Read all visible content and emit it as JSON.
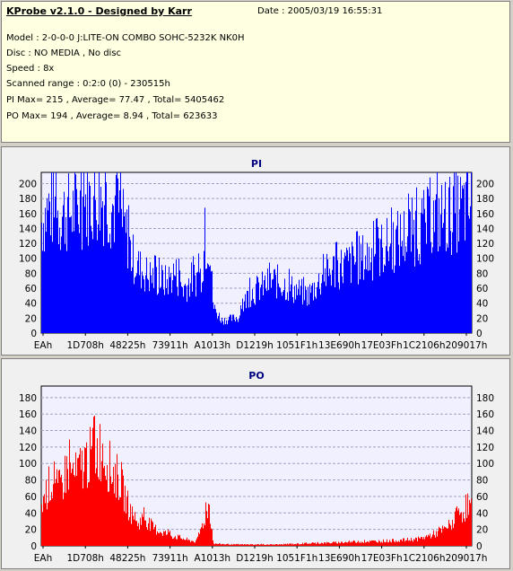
{
  "header": {
    "app_title": "KProbe v2.1.0 - Designed by Karr",
    "date": "Date : 2005/03/19 16:55:31",
    "lines": [
      "Model : 2-0-0-0 J:LITE-ON COMBO SOHC-5232K NK0H",
      "Disc : NO MEDIA , No disc",
      "Speed : 8x",
      "Scanned range : 0:2:0 (0) - 230515h",
      "PI Max= 215 , Average= 77.47 , Total= 5405462",
      "PO Max= 194 , Average= 8.94 , Total= 623633"
    ]
  },
  "chart_data": [
    {
      "type": "area",
      "title": "PI",
      "color": "#0000ff",
      "ylim": [
        0,
        215
      ],
      "yticks": [
        0,
        20,
        40,
        60,
        80,
        100,
        120,
        140,
        160,
        180,
        200
      ],
      "xticks": [
        "EAh",
        "1D708h",
        "48225h",
        "73911h",
        "A1013h",
        "D1219h",
        "1051F1h",
        "13E690h",
        "17E03Fh",
        "1C2106h",
        "209017h"
      ],
      "grid": true,
      "max": 215,
      "average": 77.47,
      "total": 5405462,
      "profile": [
        [
          0,
          175
        ],
        [
          0.02,
          200
        ],
        [
          0.04,
          185
        ],
        [
          0.06,
          190
        ],
        [
          0.08,
          192
        ],
        [
          0.1,
          205
        ],
        [
          0.12,
          210
        ],
        [
          0.14,
          212
        ],
        [
          0.16,
          200
        ],
        [
          0.18,
          190
        ],
        [
          0.2,
          150
        ],
        [
          0.21,
          120
        ],
        [
          0.23,
          100
        ],
        [
          0.25,
          90
        ],
        [
          0.27,
          85
        ],
        [
          0.29,
          80
        ],
        [
          0.31,
          95
        ],
        [
          0.33,
          70
        ],
        [
          0.35,
          85
        ],
        [
          0.37,
          90
        ],
        [
          0.38,
          140
        ],
        [
          0.39,
          150
        ],
        [
          0.4,
          40
        ],
        [
          0.41,
          30
        ],
        [
          0.42,
          20
        ],
        [
          0.44,
          22
        ],
        [
          0.46,
          25
        ],
        [
          0.48,
          60
        ],
        [
          0.5,
          68
        ],
        [
          0.52,
          75
        ],
        [
          0.54,
          82
        ],
        [
          0.56,
          78
        ],
        [
          0.58,
          70
        ],
        [
          0.6,
          65
        ],
        [
          0.62,
          60
        ],
        [
          0.64,
          75
        ],
        [
          0.66,
          92
        ],
        [
          0.68,
          100
        ],
        [
          0.7,
          105
        ],
        [
          0.72,
          110
        ],
        [
          0.74,
          115
        ],
        [
          0.76,
          120
        ],
        [
          0.78,
          128
        ],
        [
          0.8,
          135
        ],
        [
          0.82,
          142
        ],
        [
          0.84,
          150
        ],
        [
          0.86,
          158
        ],
        [
          0.88,
          165
        ],
        [
          0.9,
          172
        ],
        [
          0.92,
          180
        ],
        [
          0.94,
          185
        ],
        [
          0.96,
          190
        ],
        [
          0.98,
          195
        ],
        [
          1.0,
          200
        ]
      ]
    },
    {
      "type": "area",
      "title": "PO",
      "color": "#ff0000",
      "ylim": [
        0,
        194
      ],
      "yticks": [
        0,
        20,
        40,
        60,
        80,
        100,
        120,
        140,
        160,
        180
      ],
      "xticks": [
        "EAh",
        "1D708h",
        "48225h",
        "73911h",
        "A1013h",
        "D1219h",
        "1051F1h",
        "13E690h",
        "17E03Fh",
        "1C2106h",
        "209017h"
      ],
      "grid": true,
      "max": 194,
      "average": 8.94,
      "total": 623633,
      "profile": [
        [
          0,
          60
        ],
        [
          0.02,
          90
        ],
        [
          0.04,
          80
        ],
        [
          0.06,
          110
        ],
        [
          0.08,
          100
        ],
        [
          0.1,
          120
        ],
        [
          0.12,
          130
        ],
        [
          0.14,
          140
        ],
        [
          0.16,
          110
        ],
        [
          0.18,
          95
        ],
        [
          0.2,
          60
        ],
        [
          0.22,
          30
        ],
        [
          0.24,
          40
        ],
        [
          0.26,
          25
        ],
        [
          0.28,
          20
        ],
        [
          0.3,
          15
        ],
        [
          0.32,
          12
        ],
        [
          0.34,
          8
        ],
        [
          0.36,
          6
        ],
        [
          0.38,
          40
        ],
        [
          0.39,
          60
        ],
        [
          0.4,
          3
        ],
        [
          0.45,
          2
        ],
        [
          0.5,
          2
        ],
        [
          0.55,
          2
        ],
        [
          0.6,
          3
        ],
        [
          0.65,
          4
        ],
        [
          0.7,
          5
        ],
        [
          0.75,
          6
        ],
        [
          0.8,
          7
        ],
        [
          0.84,
          8
        ],
        [
          0.88,
          10
        ],
        [
          0.9,
          14
        ],
        [
          0.92,
          18
        ],
        [
          0.94,
          24
        ],
        [
          0.96,
          35
        ],
        [
          0.98,
          50
        ],
        [
          1.0,
          55
        ]
      ]
    }
  ]
}
